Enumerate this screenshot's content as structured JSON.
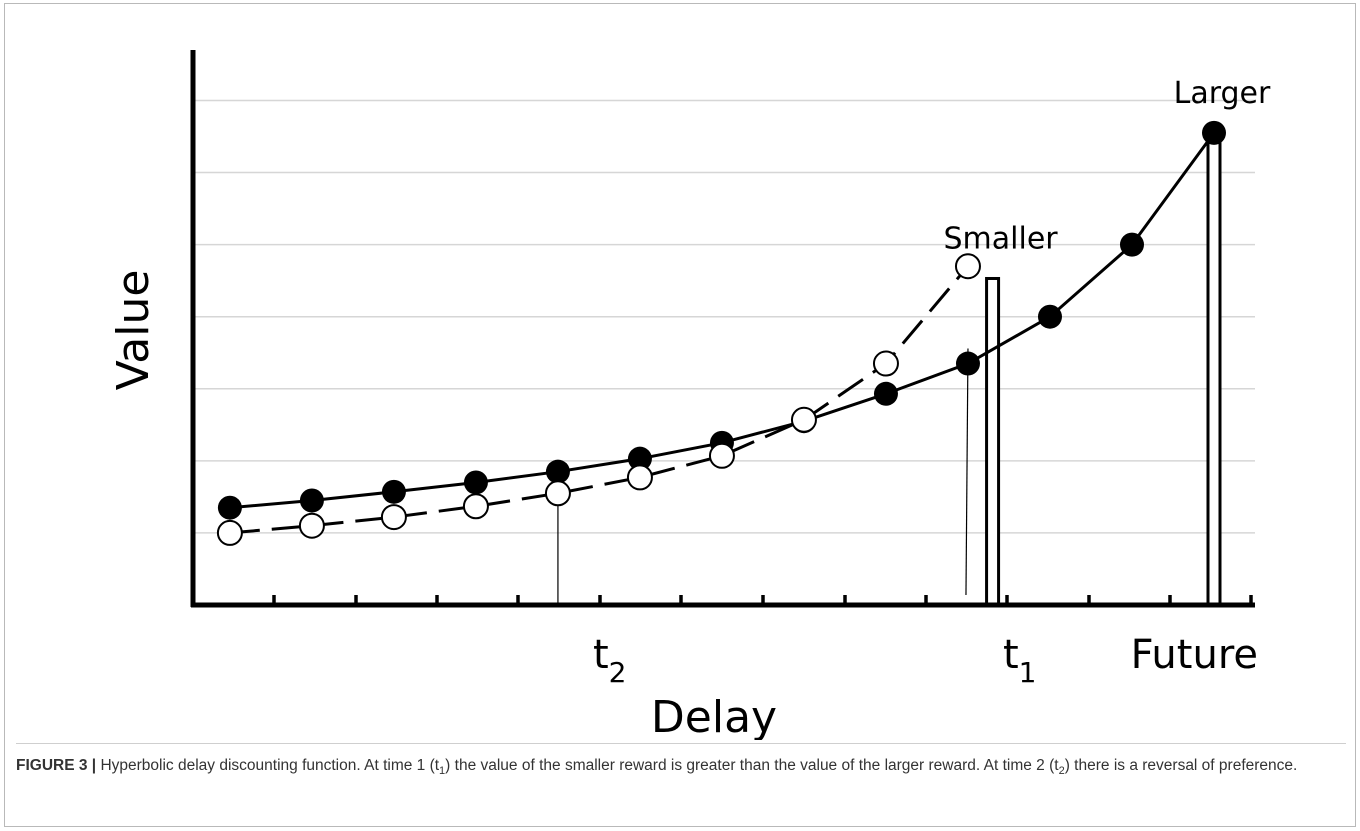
{
  "chart_data": {
    "type": "line",
    "title": "",
    "xlabel": "Delay",
    "ylabel": "Value",
    "x_tick_labels": [
      {
        "x": 4.5,
        "label": "t",
        "sub": "2"
      },
      {
        "x": 9.5,
        "label": "t",
        "sub": "1"
      },
      {
        "x": 12.5,
        "label": "Future",
        "sub": ""
      }
    ],
    "xlim": [
      -0.45,
      12.5
    ],
    "ylim": [
      0,
      7.7
    ],
    "grid": "horizontal",
    "series": [
      {
        "name": "",
        "marker": "filled-circle",
        "line": "solid",
        "x": [
          0,
          1,
          2,
          3,
          4,
          5,
          6,
          7,
          8,
          9,
          10,
          11,
          12
        ],
        "y": [
          1.35,
          1.45,
          1.57,
          1.7,
          1.85,
          2.03,
          2.25,
          2.55,
          2.93,
          3.35,
          4.0,
          5.0,
          6.55
        ]
      },
      {
        "name": "",
        "marker": "open-circle",
        "line": "dashed",
        "x": [
          0,
          1,
          2,
          3,
          4,
          5,
          6,
          7,
          8,
          9
        ],
        "y": [
          1.0,
          1.1,
          1.22,
          1.37,
          1.55,
          1.77,
          2.07,
          2.57,
          3.35,
          4.7
        ]
      }
    ],
    "reward_bars": [
      {
        "label": "Smaller",
        "x": 9.3,
        "value": 4.53
      },
      {
        "label": "Larger",
        "x": 12.0,
        "value": 6.55
      }
    ],
    "markers": [
      {
        "x": 4.0
      },
      {
        "x": 9.0
      }
    ]
  },
  "caption": {
    "label": "FIGURE 3 |",
    "text": "Hyperbolic delay discounting function. At time 1 (t",
    "sub1": "1",
    "text2": ") the value of the smaller reward is greater than the value of the larger reward. At time 2 (t",
    "sub2": "2",
    "text3": ") there is a reversal of preference."
  }
}
